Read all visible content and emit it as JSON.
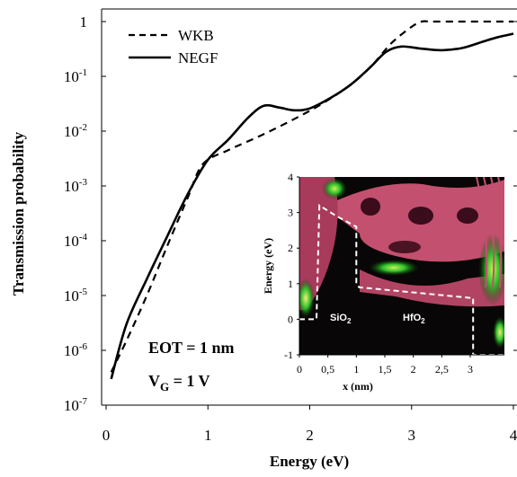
{
  "chart_data": {
    "type": "line",
    "xlabel": "Energy (eV)",
    "ylabel": "Transmission probability",
    "xlim": [
      0,
      4
    ],
    "ylim_log10": [
      -7,
      0.2
    ],
    "y_scale": "log",
    "x_ticks": [
      "0",
      "1",
      "2",
      "3",
      "4"
    ],
    "y_ticks": [
      {
        "base": "1",
        "exp": ""
      },
      {
        "base": "10",
        "exp": "-1"
      },
      {
        "base": "10",
        "exp": "-2"
      },
      {
        "base": "10",
        "exp": "-3"
      },
      {
        "base": "10",
        "exp": "-4"
      },
      {
        "base": "10",
        "exp": "-5"
      },
      {
        "base": "10",
        "exp": "-6"
      },
      {
        "base": "10",
        "exp": "-7"
      }
    ],
    "legend_position": "top-left",
    "grid": false,
    "series": [
      {
        "name": "WKB",
        "style": "dashed",
        "color": "#000000",
        "x": [
          0.05,
          0.2,
          0.4,
          0.6,
          0.8,
          0.95,
          1.2,
          1.5,
          1.8,
          2.1,
          2.4,
          2.6,
          2.8,
          3.0,
          3.1,
          3.2,
          3.5,
          4.0
        ],
        "y": [
          4e-07,
          1.5e-06,
          1e-05,
          8e-05,
          0.0006,
          0.0025,
          0.0045,
          0.008,
          0.015,
          0.03,
          0.07,
          0.15,
          0.4,
          0.8,
          1,
          1,
          1,
          1
        ]
      },
      {
        "name": "NEGF",
        "style": "solid",
        "color": "#000000",
        "x": [
          0.05,
          0.2,
          0.4,
          0.6,
          0.8,
          1.0,
          1.2,
          1.4,
          1.55,
          1.7,
          1.85,
          2.0,
          2.2,
          2.4,
          2.6,
          2.75,
          2.9,
          3.1,
          3.3,
          3.5,
          3.7,
          3.85,
          4.0
        ],
        "y": [
          3e-07,
          3e-06,
          2e-05,
          0.00012,
          0.0007,
          0.003,
          0.007,
          0.018,
          0.029,
          0.027,
          0.024,
          0.026,
          0.04,
          0.07,
          0.15,
          0.28,
          0.35,
          0.32,
          0.3,
          0.33,
          0.43,
          0.52,
          0.6
        ]
      }
    ],
    "annotations": {
      "eot": "EOT = 1 nm",
      "vg_main": "V",
      "vg_sub": "G",
      "vg_rest": " = 1 V"
    },
    "inset": {
      "type": "heatmap",
      "xlabel": "x (nm)",
      "ylabel": "Energy (eV)",
      "xlim": [
        0,
        3.6
      ],
      "ylim": [
        -1,
        4
      ],
      "x_ticks": [
        "0",
        "0,5",
        "1",
        "1,5",
        "2",
        "2,5",
        "3"
      ],
      "y_ticks": [
        "4",
        "3",
        "2",
        "1",
        "0",
        "-1"
      ],
      "region_labels": [
        {
          "base": "SiO",
          "sub": "2"
        },
        {
          "base": "HfO",
          "sub": "2"
        }
      ],
      "band_profile_x": [
        0,
        0.3,
        0.35,
        0.65,
        1.0,
        1.0,
        1.05,
        3.0,
        3.05,
        3.05,
        3.6
      ],
      "band_profile_y": [
        0,
        0,
        3.2,
        2.9,
        2.6,
        1.0,
        0.9,
        0.6,
        0.6,
        -1.0,
        -1.0
      ],
      "colors": {
        "background": "#080606",
        "magenta": "#c2506e",
        "green": "#2fc12a",
        "yellow": "#e8e04a",
        "profile": "#ffffff"
      }
    }
  }
}
